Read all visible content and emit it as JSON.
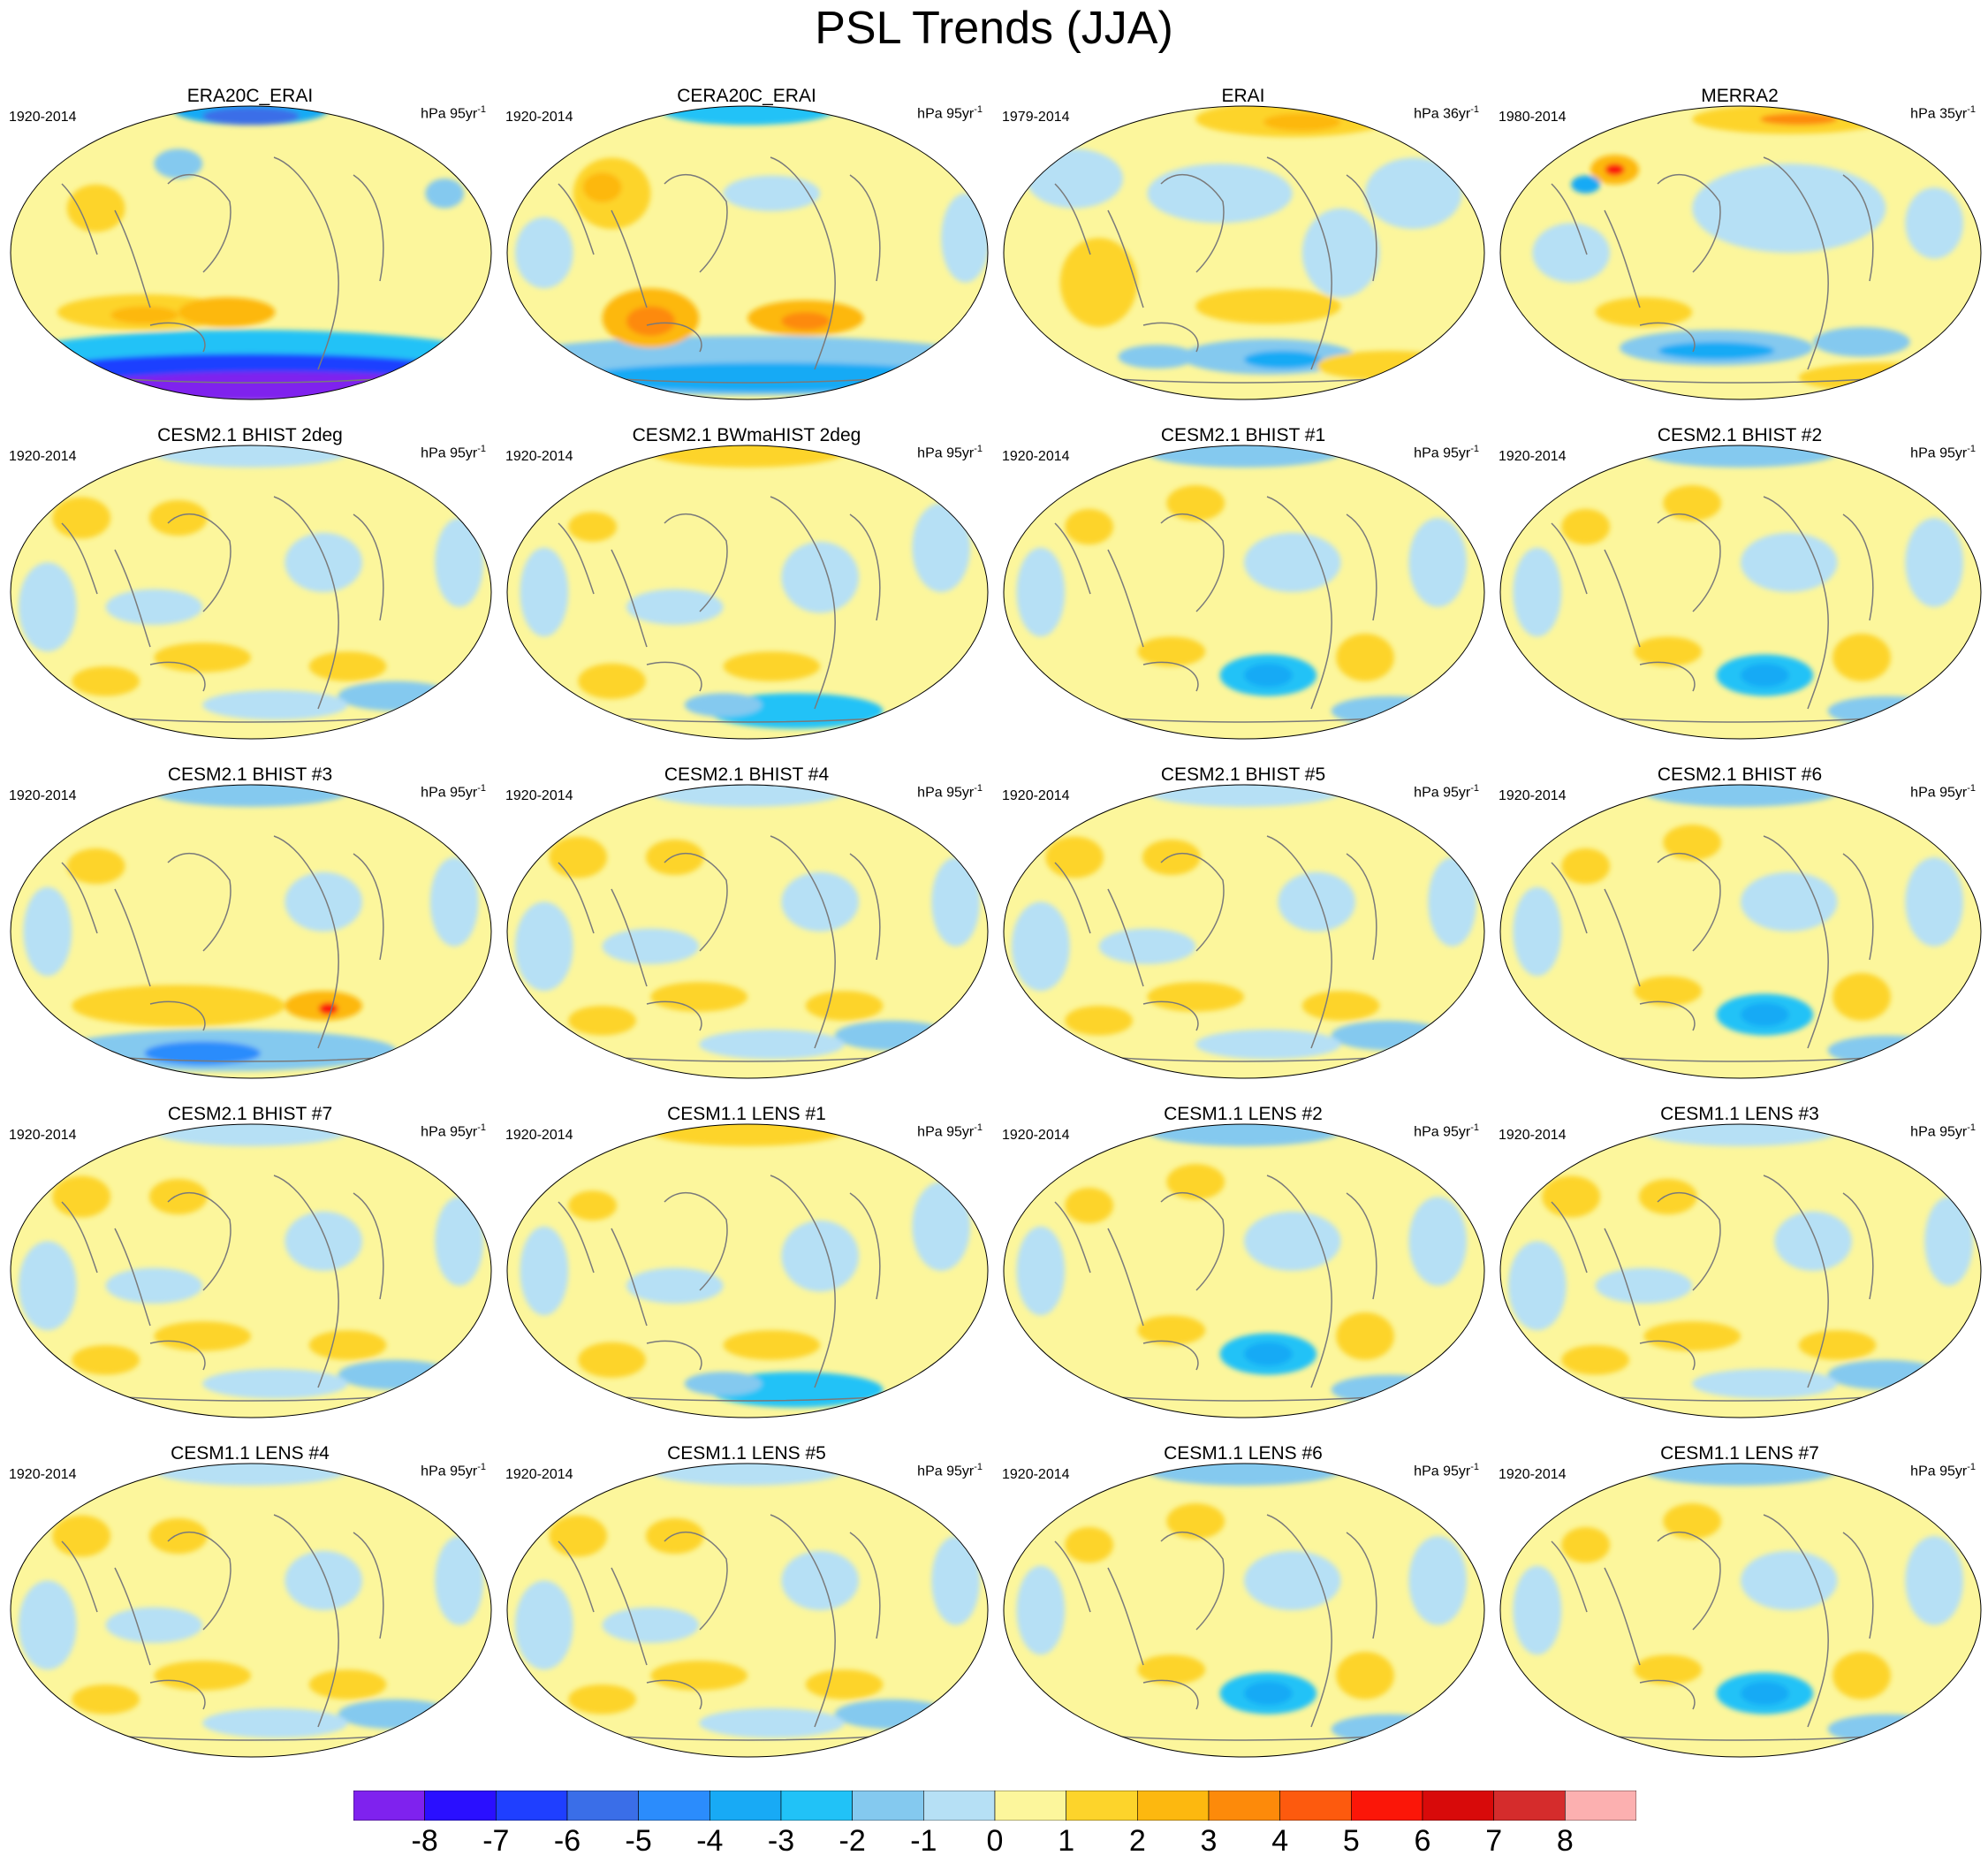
{
  "figure": {
    "title": "PSL Trends (JJA)"
  },
  "colorbar": {
    "colors": [
      "#7f22ee",
      "#2a0fff",
      "#1f3fff",
      "#3a6ee8",
      "#2b8cfc",
      "#18aaf5",
      "#21c2f7",
      "#84c9ef",
      "#b6e0f5",
      "#fcf69c",
      "#fdd42b",
      "#fdb80f",
      "#fd8a0a",
      "#fd5a0e",
      "#fb1608",
      "#d80a0a",
      "#d52c2c",
      "#fcb0b0"
    ],
    "labels": [
      "-8",
      "-7",
      "-6",
      "-5",
      "-4",
      "-3",
      "-2",
      "-1",
      "0",
      "1",
      "2",
      "3",
      "4",
      "5",
      "6",
      "7",
      "8"
    ]
  },
  "panels": [
    {
      "title": "ERA20C_ERAI",
      "period": "1920-2014",
      "unit": "hPa 95yr",
      "unit_exp": "-1",
      "pattern": "era20c"
    },
    {
      "title": "CERA20C_ERAI",
      "period": "1920-2014",
      "unit": "hPa 95yr",
      "unit_exp": "-1",
      "pattern": "cera20c"
    },
    {
      "title": "ERAI",
      "period": "1979-2014",
      "unit": "hPa 36yr",
      "unit_exp": "-1",
      "pattern": "erai"
    },
    {
      "title": "MERRA2",
      "period": "1980-2014",
      "unit": "hPa 35yr",
      "unit_exp": "-1",
      "pattern": "merra2"
    },
    {
      "title": "CESM2.1 BHIST 2deg",
      "period": "1920-2014",
      "unit": "hPa 95yr",
      "unit_exp": "-1",
      "pattern": "model"
    },
    {
      "title": "CESM2.1 BWmaHIST 2deg",
      "period": "1920-2014",
      "unit": "hPa 95yr",
      "unit_exp": "-1",
      "pattern": "model_arctic"
    },
    {
      "title": "CESM2.1 BHIST #1",
      "period": "1920-2014",
      "unit": "hPa 95yr",
      "unit_exp": "-1",
      "pattern": "model_blue"
    },
    {
      "title": "CESM2.1 BHIST #2",
      "period": "1920-2014",
      "unit": "hPa 95yr",
      "unit_exp": "-1",
      "pattern": "model_blue"
    },
    {
      "title": "CESM2.1 BHIST #3",
      "period": "1920-2014",
      "unit": "hPa 95yr",
      "unit_exp": "-1",
      "pattern": "model_strong"
    },
    {
      "title": "CESM2.1 BHIST #4",
      "period": "1920-2014",
      "unit": "hPa 95yr",
      "unit_exp": "-1",
      "pattern": "model"
    },
    {
      "title": "CESM2.1 BHIST #5",
      "period": "1920-2014",
      "unit": "hPa 95yr",
      "unit_exp": "-1",
      "pattern": "model"
    },
    {
      "title": "CESM2.1 BHIST #6",
      "period": "1920-2014",
      "unit": "hPa 95yr",
      "unit_exp": "-1",
      "pattern": "model_blue"
    },
    {
      "title": "CESM2.1 BHIST #7",
      "period": "1920-2014",
      "unit": "hPa 95yr",
      "unit_exp": "-1",
      "pattern": "model"
    },
    {
      "title": "CESM1.1 LENS #1",
      "period": "1920-2014",
      "unit": "hPa 95yr",
      "unit_exp": "-1",
      "pattern": "model_arctic"
    },
    {
      "title": "CESM1.1 LENS #2",
      "period": "1920-2014",
      "unit": "hPa 95yr",
      "unit_exp": "-1",
      "pattern": "model_blue"
    },
    {
      "title": "CESM1.1 LENS #3",
      "period": "1920-2014",
      "unit": "hPa 95yr",
      "unit_exp": "-1",
      "pattern": "model"
    },
    {
      "title": "CESM1.1 LENS #4",
      "period": "1920-2014",
      "unit": "hPa 95yr",
      "unit_exp": "-1",
      "pattern": "model"
    },
    {
      "title": "CESM1.1 LENS #5",
      "period": "1920-2014",
      "unit": "hPa 95yr",
      "unit_exp": "-1",
      "pattern": "model"
    },
    {
      "title": "CESM1.1 LENS #6",
      "period": "1920-2014",
      "unit": "hPa 95yr",
      "unit_exp": "-1",
      "pattern": "model_blue"
    },
    {
      "title": "CESM1.1 LENS #7",
      "period": "1920-2014",
      "unit": "hPa 95yr",
      "unit_exp": "-1",
      "pattern": "model_blue"
    }
  ]
}
